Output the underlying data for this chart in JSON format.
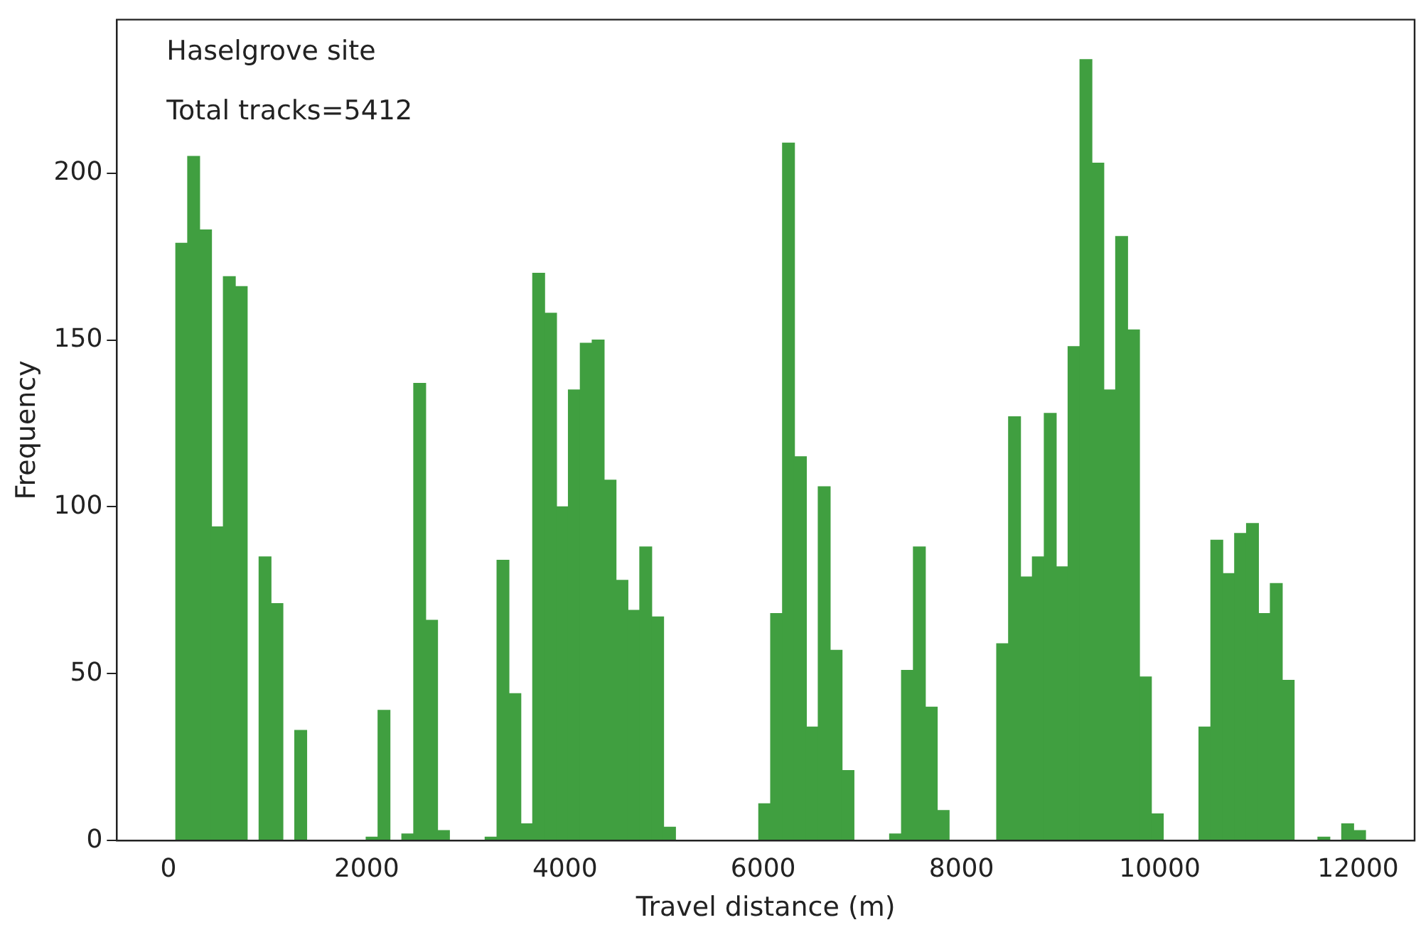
{
  "chart_data": {
    "type": "histogram",
    "xlabel": "Travel distance (m)",
    "ylabel": "Frequency",
    "annotations": [
      "Haselgrove site",
      "Total tracks=5412"
    ],
    "color": "#409f40",
    "bins": [
      75,
      195,
      315,
      435,
      555,
      675,
      795,
      915,
      1035,
      1155,
      1275,
      1395,
      1515,
      1635,
      1755,
      1875,
      1995,
      2115,
      2235,
      2355,
      2475,
      2595,
      2715,
      2835,
      2955,
      3075,
      3195,
      3315,
      3435,
      3555,
      3675,
      3795,
      3915,
      4035,
      4155,
      4275,
      4395,
      4515,
      4635,
      4755,
      4875,
      4995,
      5115,
      5235,
      5355,
      5475,
      5595,
      5715,
      5835,
      5955,
      6075,
      6195,
      6315,
      6435,
      6555,
      6675,
      6795,
      6915,
      7035,
      7155,
      7275,
      7395,
      7515,
      7635,
      7755,
      7875,
      7995,
      8115,
      8235,
      8355,
      8475,
      8595,
      8715,
      8835,
      8955,
      9075,
      9195,
      9315,
      9435,
      9555,
      9675,
      9795,
      9915,
      10035,
      10155,
      10275,
      10395,
      10515,
      10635,
      10755,
      10875,
      10995,
      11115,
      11235,
      11355,
      11475,
      11595,
      11715,
      11835,
      11955,
      12075
    ],
    "values": [
      179,
      205,
      183,
      94,
      169,
      166,
      0,
      85,
      71,
      0,
      33,
      0,
      0,
      0,
      0,
      0,
      1,
      39,
      0,
      2,
      137,
      66,
      3,
      0,
      0,
      0,
      1,
      84,
      44,
      5,
      170,
      158,
      100,
      135,
      149,
      150,
      108,
      78,
      69,
      88,
      67,
      4,
      0,
      0,
      0,
      0,
      0,
      0,
      0,
      11,
      68,
      209,
      115,
      34,
      106,
      57,
      21,
      0,
      0,
      0,
      2,
      51,
      88,
      40,
      9,
      0,
      0,
      0,
      0,
      59,
      127,
      79,
      85,
      128,
      82,
      148,
      234,
      203,
      135,
      181,
      153,
      49,
      8,
      0,
      0,
      0,
      34,
      90,
      80,
      92,
      95,
      68,
      77,
      48,
      0,
      0,
      1,
      0,
      5,
      3
    ],
    "xlim": [
      -520,
      12570
    ],
    "ylim": [
      0,
      246
    ],
    "xticks": [
      0,
      2000,
      4000,
      6000,
      8000,
      10000,
      12000
    ],
    "yticks": [
      0,
      50,
      100,
      150,
      200
    ]
  }
}
